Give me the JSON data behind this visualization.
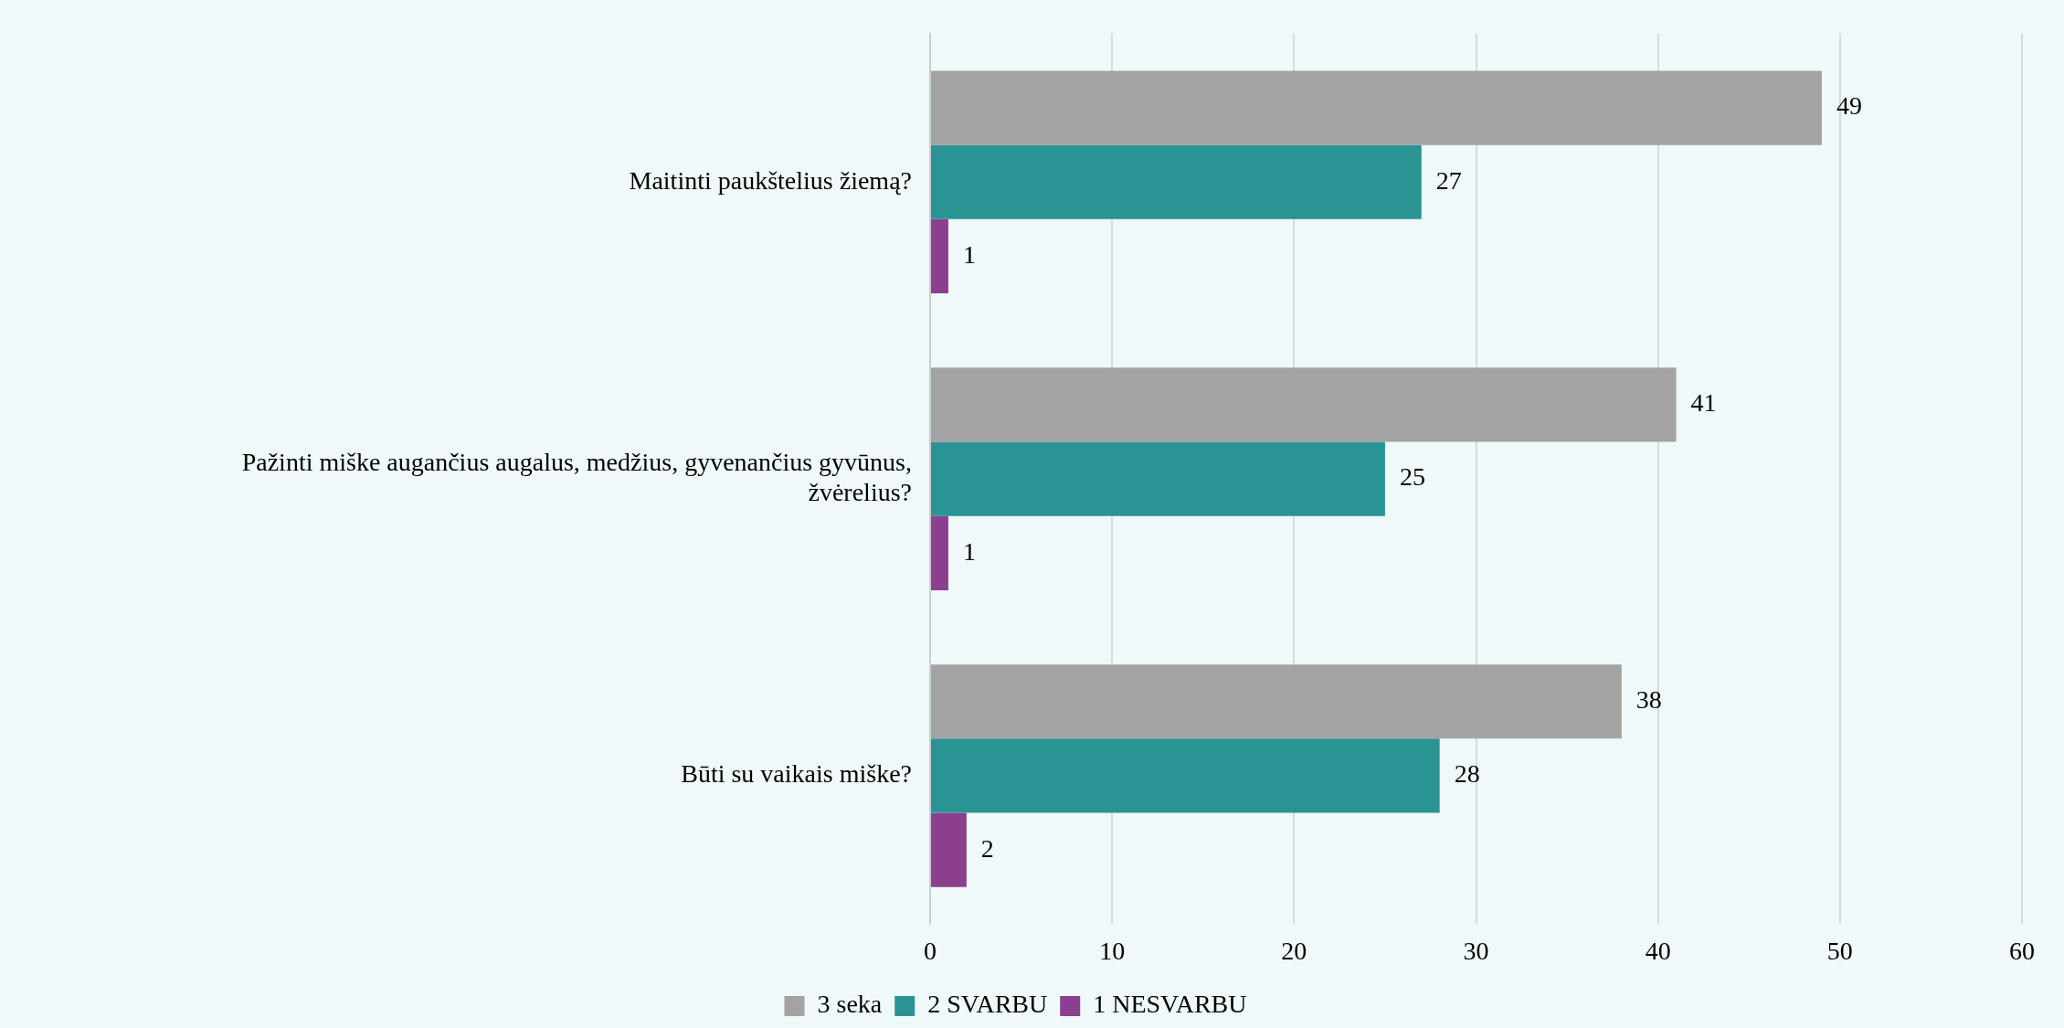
{
  "chart_data": {
    "type": "bar",
    "orientation": "horizontal",
    "categories": [
      "Maitinti paukštelius žiemą?",
      "Pažinti miške augančius augalus, medžius, gyvenančius gyvūnus, žvėrelius?",
      "Būti su vaikais miške?"
    ],
    "series": [
      {
        "name": "3 seka",
        "color": "#a3a3a3",
        "values": [
          49,
          41,
          38
        ]
      },
      {
        "name": "2 SVARBU",
        "color": "#2a9494",
        "values": [
          27,
          25,
          28
        ]
      },
      {
        "name": "1 NESVARBU",
        "color": "#8b3f8f",
        "values": [
          1,
          1,
          2
        ]
      }
    ],
    "xlim": [
      0,
      60
    ],
    "xticks": [
      0,
      10,
      20,
      30,
      40,
      50,
      60
    ],
    "grid": "x",
    "legend": "bottom",
    "data_labels": true
  }
}
